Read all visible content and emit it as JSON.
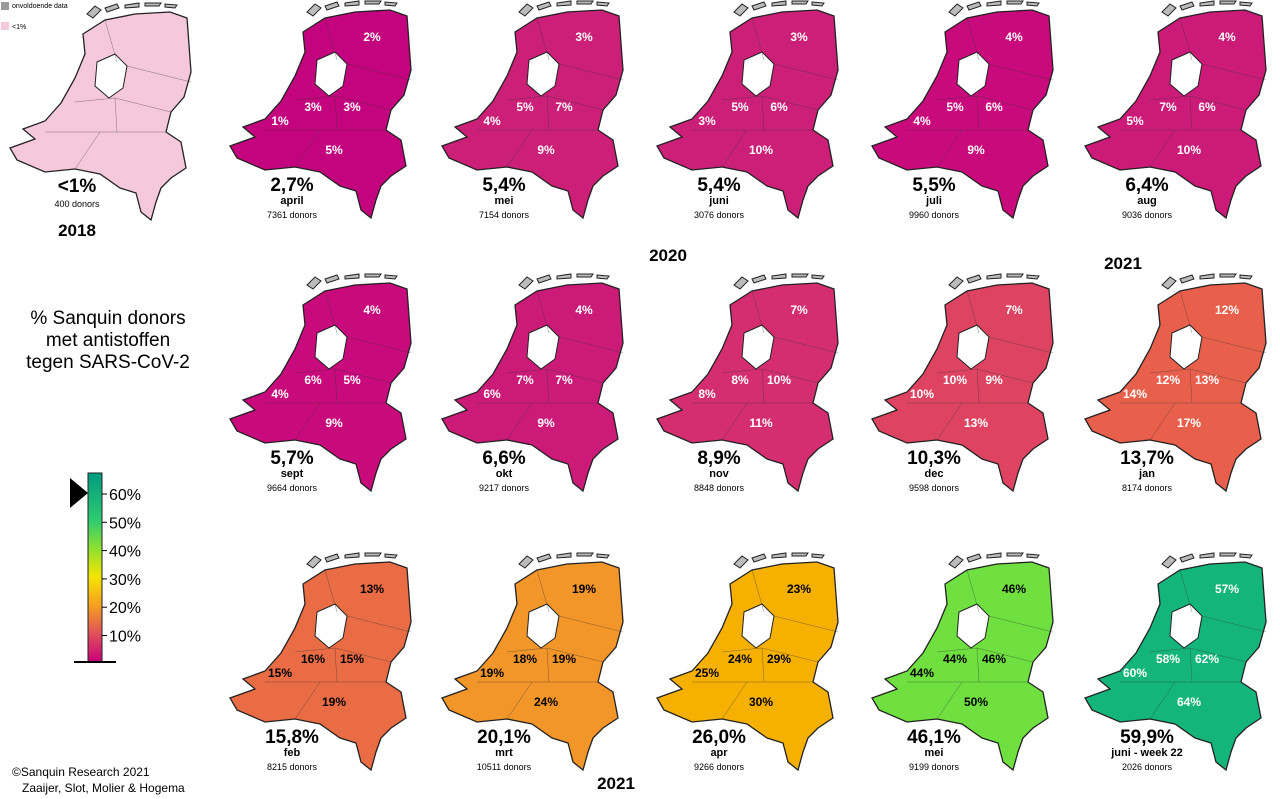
{
  "legend_top": {
    "items": [
      "onvoldoende data",
      "<1%"
    ]
  },
  "title_lines": [
    "% Sanquin donors",
    "met antistoffen",
    "tegen SARS-CoV-2"
  ],
  "scale": {
    "ticks": [
      "60%",
      "50%",
      "40%",
      "30%",
      "20%",
      "10%"
    ]
  },
  "baseline": {
    "total": "<1%",
    "donors": "400 donors",
    "year": "2018"
  },
  "year_labels": [
    "2020",
    "2021",
    "2021"
  ],
  "credits": [
    "©Sanquin Research 2021",
    "Zaaijer, Slot, Molier & Hogema"
  ],
  "maps": [
    {
      "total": "2,7%",
      "month": "april",
      "donors": "7361 donors",
      "color": "#c4047e",
      "regions": [
        "2%",
        "3%",
        "3%",
        "1%",
        "5%"
      ]
    },
    {
      "total": "5,4%",
      "month": "mei",
      "donors": "7154 donors",
      "color": "#cc1f78",
      "regions": [
        "3%",
        "5%",
        "7%",
        "4%",
        "9%"
      ]
    },
    {
      "total": "5,4%",
      "month": "juni",
      "donors": "3076 donors",
      "color": "#cc1f78",
      "regions": [
        "3%",
        "5%",
        "6%",
        "3%",
        "10%"
      ]
    },
    {
      "total": "5,5%",
      "month": "juli",
      "donors": "9960 donors",
      "color": "#c90a7c",
      "regions": [
        "4%",
        "5%",
        "6%",
        "4%",
        "9%"
      ]
    },
    {
      "total": "6,4%",
      "month": "aug",
      "donors": "9036 donors",
      "color": "#cc1a78",
      "regions": [
        "4%",
        "7%",
        "6%",
        "5%",
        "10%"
      ]
    },
    {
      "total": "5,7%",
      "month": "sept",
      "donors": "9664 donors",
      "color": "#c90a7c",
      "regions": [
        "4%",
        "6%",
        "5%",
        "4%",
        "9%"
      ]
    },
    {
      "total": "6,6%",
      "month": "okt",
      "donors": "9217 donors",
      "color": "#cc1a78",
      "regions": [
        "4%",
        "7%",
        "7%",
        "6%",
        "9%"
      ]
    },
    {
      "total": "8,9%",
      "month": "nov",
      "donors": "8848 donors",
      "color": "#d42e70",
      "regions": [
        "7%",
        "8%",
        "10%",
        "8%",
        "11%"
      ]
    },
    {
      "total": "10,3%",
      "month": "dec",
      "donors": "9598 donors",
      "color": "#de4462",
      "regions": [
        "7%",
        "10%",
        "9%",
        "10%",
        "13%"
      ]
    },
    {
      "total": "13,7%",
      "month": "jan",
      "donors": "8174 donors",
      "color": "#e8604c",
      "regions": [
        "12%",
        "12%",
        "13%",
        "14%",
        "17%"
      ]
    },
    {
      "total": "15,8%",
      "month": "feb",
      "donors": "8215 donors",
      "color": "#ea6c44",
      "regions": [
        "13%",
        "16%",
        "15%",
        "15%",
        "19%"
      ]
    },
    {
      "total": "20,1%",
      "month": "mrt",
      "donors": "10511 donors",
      "color": "#f2962a",
      "regions": [
        "19%",
        "18%",
        "19%",
        "19%",
        "24%"
      ]
    },
    {
      "total": "26,0%",
      "month": "apr",
      "donors": "9266 donors",
      "color": "#f5b000",
      "regions": [
        "23%",
        "24%",
        "29%",
        "25%",
        "30%"
      ]
    },
    {
      "total": "46,1%",
      "month": "mei",
      "donors": "9199 donors",
      "color": "#6fe040",
      "regions": [
        "46%",
        "44%",
        "46%",
        "44%",
        "50%"
      ]
    },
    {
      "total": "59,9%",
      "month": "juni - week 22",
      "donors": "2026 donors",
      "color": "#13b57a",
      "regions": [
        "57%",
        "58%",
        "62%",
        "60%",
        "64%"
      ]
    }
  ]
}
